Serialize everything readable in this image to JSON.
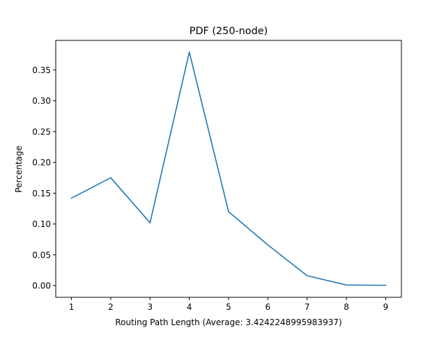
{
  "chart_data": {
    "type": "line",
    "title": "PDF (250-node)",
    "xlabel": "Routing Path Length (Average: 3.4242248995983937)",
    "ylabel": "Percentage",
    "x": [
      1,
      2,
      3,
      4,
      5,
      6,
      7,
      8,
      9
    ],
    "series": [
      {
        "values": [
          0.142,
          0.175,
          0.102,
          0.379,
          0.12,
          0.066,
          0.016,
          0.001,
          0.0005
        ],
        "color": "#1f77b4"
      }
    ],
    "xlim": [
      0.6,
      9.4
    ],
    "ylim": [
      -0.019,
      0.398
    ],
    "xticks": [
      1,
      2,
      3,
      4,
      5,
      6,
      7,
      8,
      9
    ],
    "xtick_labels": [
      "1",
      "2",
      "3",
      "4",
      "5",
      "6",
      "7",
      "8",
      "9"
    ],
    "yticks": [
      0.0,
      0.05,
      0.1,
      0.15,
      0.2,
      0.25,
      0.3,
      0.35
    ],
    "ytick_labels": [
      "0.00",
      "0.05",
      "0.10",
      "0.15",
      "0.20",
      "0.25",
      "0.30",
      "0.35"
    ],
    "grid": false,
    "legend": false
  }
}
